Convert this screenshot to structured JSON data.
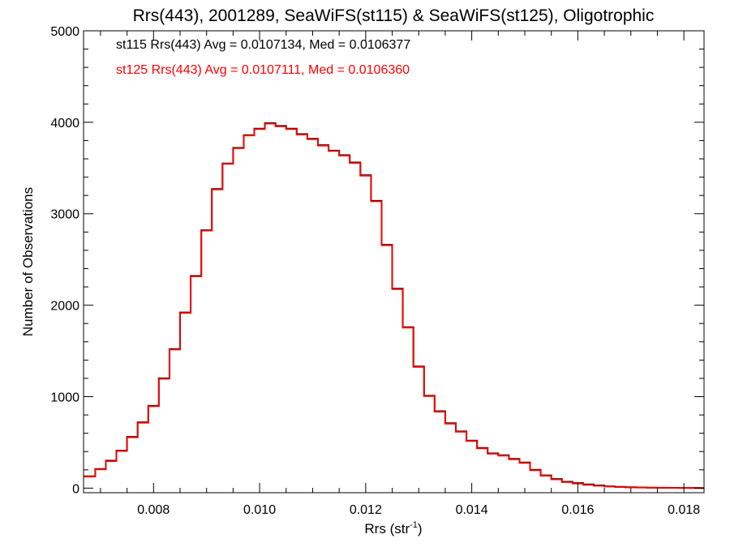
{
  "chart_data": {
    "type": "step",
    "title": "Rrs(443), 2001289, SeaWiFS(st115) & SeaWiFS(st125), Oligotrophic",
    "xlabel": "Rrs (str",
    "xlabel_sup": "-1",
    "xlabel_end": ")",
    "ylabel": "Number of Observations",
    "xlim": [
      0.00668,
      0.01838
    ],
    "ylim": [
      -50,
      5000
    ],
    "xticks": [
      0.008,
      0.01,
      0.012,
      0.014,
      0.016,
      0.018
    ],
    "xtick_labels": [
      "0.008",
      "0.010",
      "0.012",
      "0.014",
      "0.016",
      "0.018"
    ],
    "yticks": [
      0,
      1000,
      2000,
      3000,
      4000,
      5000
    ],
    "ytick_labels": [
      "0",
      "1000",
      "2000",
      "3000",
      "4000",
      "5000"
    ],
    "x_minor_step": 0.0005,
    "y_minor_step": 200,
    "grid": false,
    "series": [
      {
        "name": "st115",
        "color": "#000000",
        "annotation": "st115 Rrs(443) Avg = 0.0107134, Med = 0.0106377",
        "x": [
          0.00668,
          0.0069,
          0.0071,
          0.0073,
          0.0075,
          0.0077,
          0.0079,
          0.0081,
          0.0083,
          0.0085,
          0.0087,
          0.0089,
          0.0091,
          0.0093,
          0.0095,
          0.0097,
          0.0099,
          0.0101,
          0.0103,
          0.0105,
          0.0107,
          0.0109,
          0.0111,
          0.0113,
          0.0115,
          0.0117,
          0.0119,
          0.0121,
          0.0123,
          0.0125,
          0.0127,
          0.0129,
          0.0131,
          0.0133,
          0.0135,
          0.0137,
          0.0139,
          0.0141,
          0.0143,
          0.0145,
          0.0147,
          0.0149,
          0.0151,
          0.0153,
          0.0155,
          0.0157,
          0.0159,
          0.0161,
          0.0163,
          0.0165,
          0.0167,
          0.0169,
          0.0171,
          0.0173,
          0.0175,
          0.0177,
          0.0179,
          0.0181,
          0.0183
        ],
        "y": [
          130,
          210,
          300,
          410,
          560,
          720,
          900,
          1200,
          1520,
          1920,
          2320,
          2820,
          3270,
          3550,
          3720,
          3860,
          3930,
          3990,
          3960,
          3930,
          3870,
          3820,
          3750,
          3690,
          3640,
          3560,
          3420,
          3140,
          2660,
          2180,
          1760,
          1330,
          1010,
          840,
          710,
          620,
          520,
          440,
          380,
          360,
          320,
          280,
          200,
          140,
          100,
          70,
          55,
          40,
          30,
          20,
          15,
          10,
          8,
          5,
          4,
          3,
          2,
          2,
          1
        ]
      },
      {
        "name": "st125",
        "color": "#ff0000",
        "annotation": "st125 Rrs(443) Avg = 0.0107111, Med = 0.0106360",
        "x": [
          0.00668,
          0.0069,
          0.0071,
          0.0073,
          0.0075,
          0.0077,
          0.0079,
          0.0081,
          0.0083,
          0.0085,
          0.0087,
          0.0089,
          0.0091,
          0.0093,
          0.0095,
          0.0097,
          0.0099,
          0.0101,
          0.0103,
          0.0105,
          0.0107,
          0.0109,
          0.0111,
          0.0113,
          0.0115,
          0.0117,
          0.0119,
          0.0121,
          0.0123,
          0.0125,
          0.0127,
          0.0129,
          0.0131,
          0.0133,
          0.0135,
          0.0137,
          0.0139,
          0.0141,
          0.0143,
          0.0145,
          0.0147,
          0.0149,
          0.0151,
          0.0153,
          0.0155,
          0.0157,
          0.0159,
          0.0161,
          0.0163,
          0.0165,
          0.0167,
          0.0169,
          0.0171,
          0.0173,
          0.0175,
          0.0177,
          0.0179,
          0.0181,
          0.0183
        ],
        "y": [
          125,
          205,
          295,
          405,
          555,
          715,
          895,
          1195,
          1515,
          1915,
          2315,
          2815,
          3265,
          3545,
          3715,
          3855,
          3925,
          3985,
          3955,
          3925,
          3865,
          3815,
          3745,
          3685,
          3635,
          3555,
          3415,
          3135,
          2655,
          2175,
          1755,
          1325,
          1005,
          835,
          705,
          615,
          515,
          435,
          375,
          355,
          315,
          275,
          195,
          135,
          95,
          65,
          50,
          35,
          25,
          18,
          12,
          8,
          6,
          4,
          3,
          2,
          2,
          1,
          1
        ]
      }
    ]
  }
}
